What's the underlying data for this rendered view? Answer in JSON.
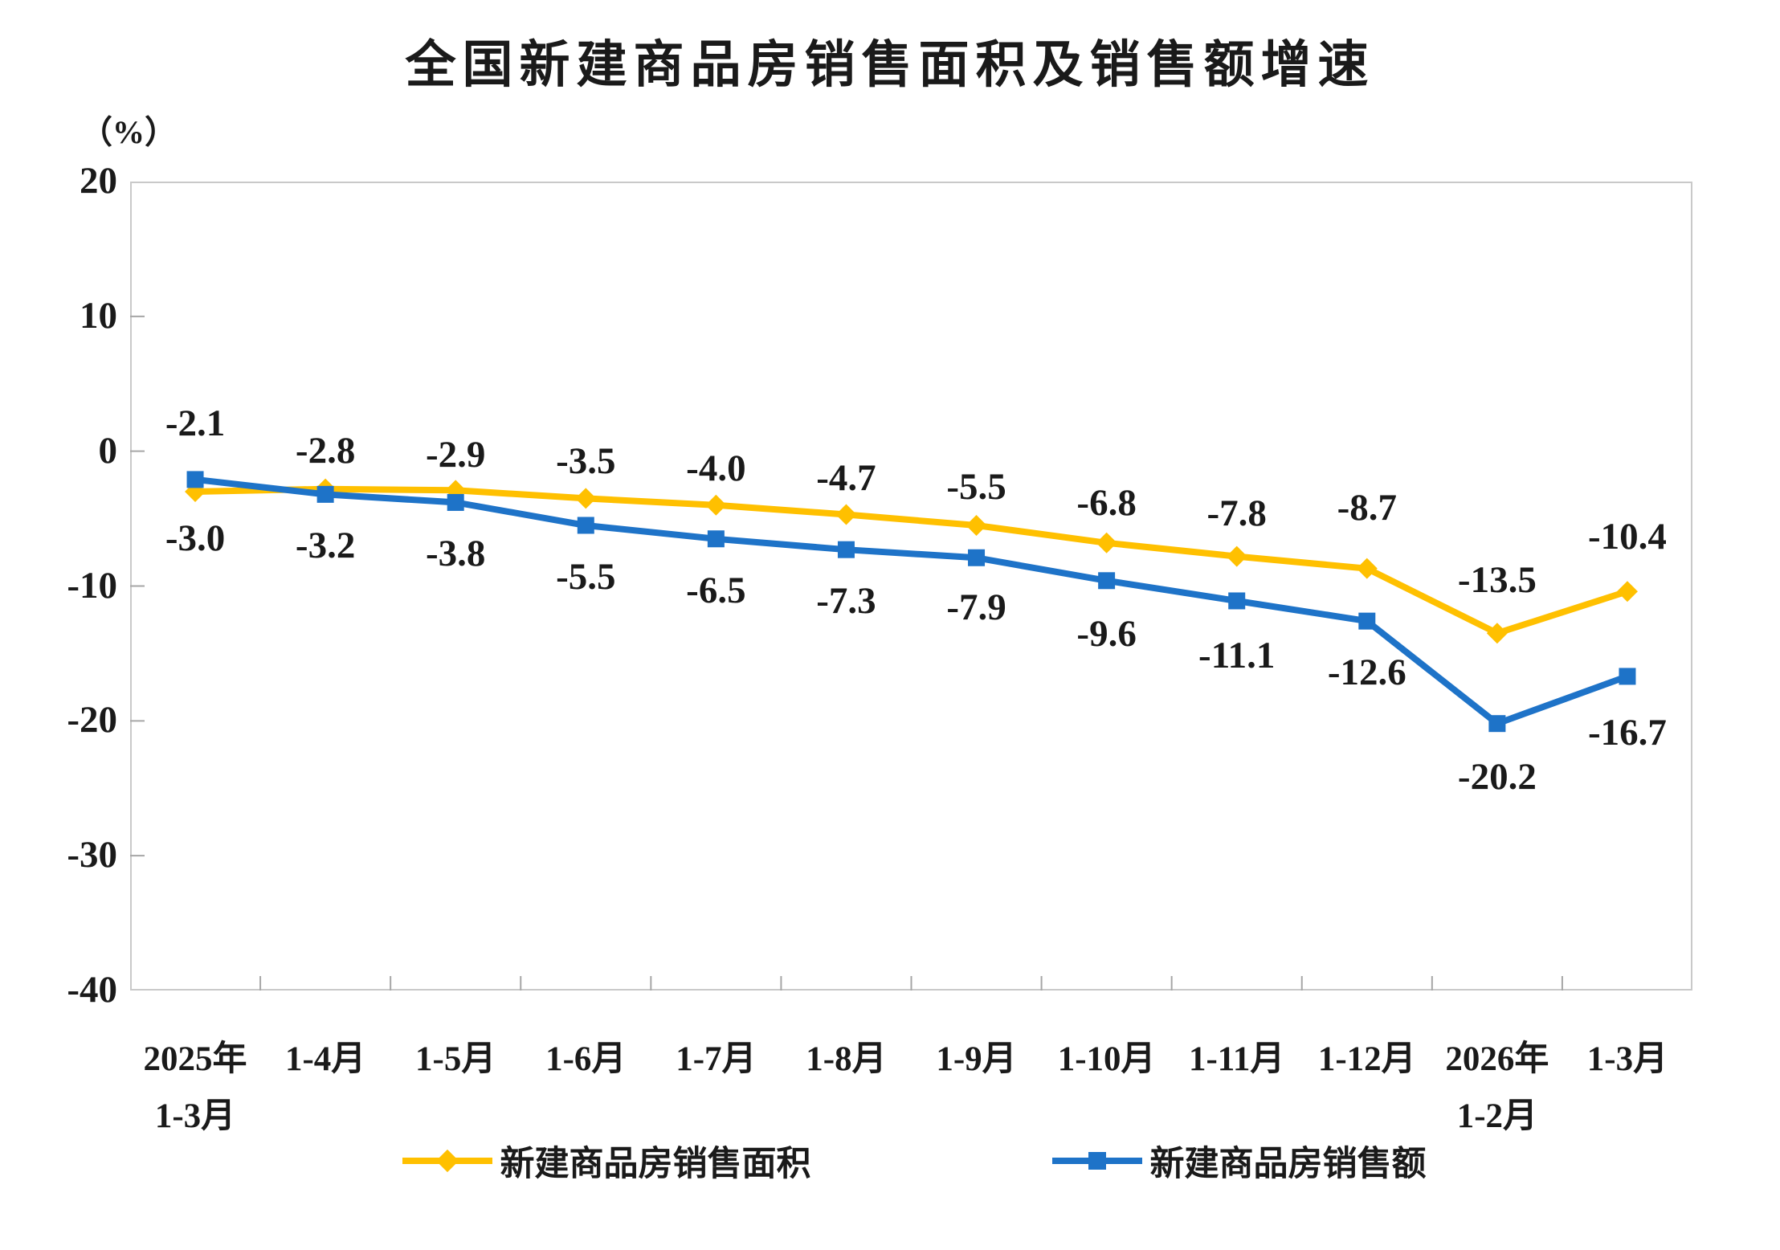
{
  "chart_data": {
    "type": "line",
    "title": "全国新建商品房销售面积及销售额增速",
    "y_unit_label": "（%）",
    "y_axis": {
      "min": -40,
      "max": 20,
      "step": 10,
      "tick_labels": [
        "20",
        "10",
        "0",
        "-10",
        "-20",
        "-30",
        "-40"
      ]
    },
    "categories": [
      [
        "2025年",
        "1-3月"
      ],
      [
        "1-4月"
      ],
      [
        "1-5月"
      ],
      [
        "1-6月"
      ],
      [
        "1-7月"
      ],
      [
        "1-8月"
      ],
      [
        "1-9月"
      ],
      [
        "1-10月"
      ],
      [
        "1-11月"
      ],
      [
        "1-12月"
      ],
      [
        "2026年",
        "1-2月"
      ],
      [
        "1-3月"
      ]
    ],
    "series": [
      {
        "name": "新建商品房销售面积",
        "marker": "diamond",
        "color": "#FFC000",
        "values": [
          -3.0,
          -2.8,
          -2.9,
          -3.5,
          -4.0,
          -4.7,
          -5.5,
          -6.8,
          -7.8,
          -8.7,
          -13.5,
          -10.4
        ]
      },
      {
        "name": "新建商品房销售额",
        "marker": "square",
        "color": "#1E73C8",
        "values": [
          -2.1,
          -3.2,
          -3.8,
          -5.5,
          -6.5,
          -7.3,
          -7.9,
          -9.6,
          -11.1,
          -12.6,
          -20.2,
          -16.7
        ]
      }
    ],
    "legend_position": "bottom",
    "grid": false
  },
  "colors": {
    "series_area": "#FFC000",
    "series_amount": "#1E73C8",
    "plot_border": "#C9C9C9",
    "tick": "#A6A6A6",
    "text": "#1A1A1A"
  }
}
